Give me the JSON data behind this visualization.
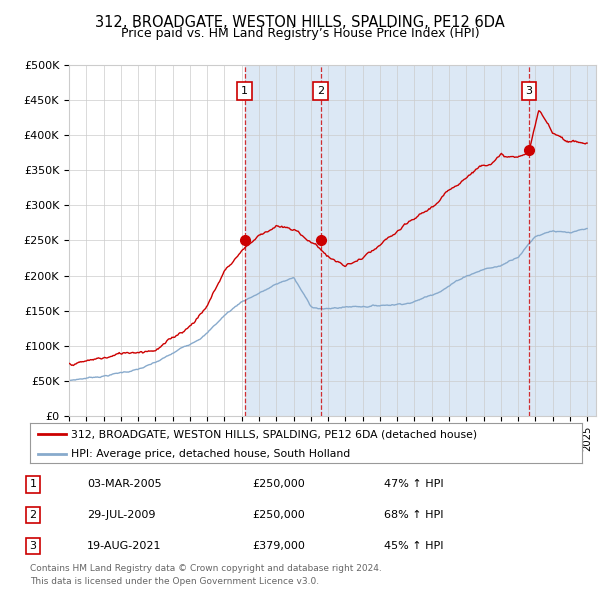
{
  "title": "312, BROADGATE, WESTON HILLS, SPALDING, PE12 6DA",
  "subtitle": "Price paid vs. HM Land Registry’s House Price Index (HPI)",
  "legend_line1": "312, BROADGATE, WESTON HILLS, SPALDING, PE12 6DA (detached house)",
  "legend_line2": "HPI: Average price, detached house, South Holland",
  "footer1": "Contains HM Land Registry data © Crown copyright and database right 2024.",
  "footer2": "This data is licensed under the Open Government Licence v3.0.",
  "sales": [
    {
      "num": 1,
      "date": "03-MAR-2005",
      "price": 250000,
      "pct": "47% ↑ HPI",
      "x_year": 2005.17
    },
    {
      "num": 2,
      "date": "29-JUL-2009",
      "price": 250000,
      "pct": "68% ↑ HPI",
      "x_year": 2009.58
    },
    {
      "num": 3,
      "date": "19-AUG-2021",
      "price": 379000,
      "pct": "45% ↑ HPI",
      "x_year": 2021.63
    }
  ],
  "ylim": [
    0,
    500000
  ],
  "yticks": [
    0,
    50000,
    100000,
    150000,
    200000,
    250000,
    300000,
    350000,
    400000,
    450000,
    500000
  ],
  "ytick_labels": [
    "£0",
    "£50K",
    "£100K",
    "£150K",
    "£200K",
    "£250K",
    "£300K",
    "£350K",
    "£400K",
    "£450K",
    "£500K"
  ],
  "xlim_start": 1995.0,
  "xlim_end": 2025.5,
  "red_color": "#cc0000",
  "blue_color": "#88aacc",
  "shade_color": "#dce8f5",
  "grid_color": "#cccccc",
  "marker_box_color": "#cc0000",
  "table_data": [
    [
      "1",
      "03-MAR-2005",
      "£250,000",
      "47% ↑ HPI"
    ],
    [
      "2",
      "29-JUL-2009",
      "£250,000",
      "68% ↑ HPI"
    ],
    [
      "3",
      "19-AUG-2021",
      "£379,000",
      "45% ↑ HPI"
    ]
  ]
}
